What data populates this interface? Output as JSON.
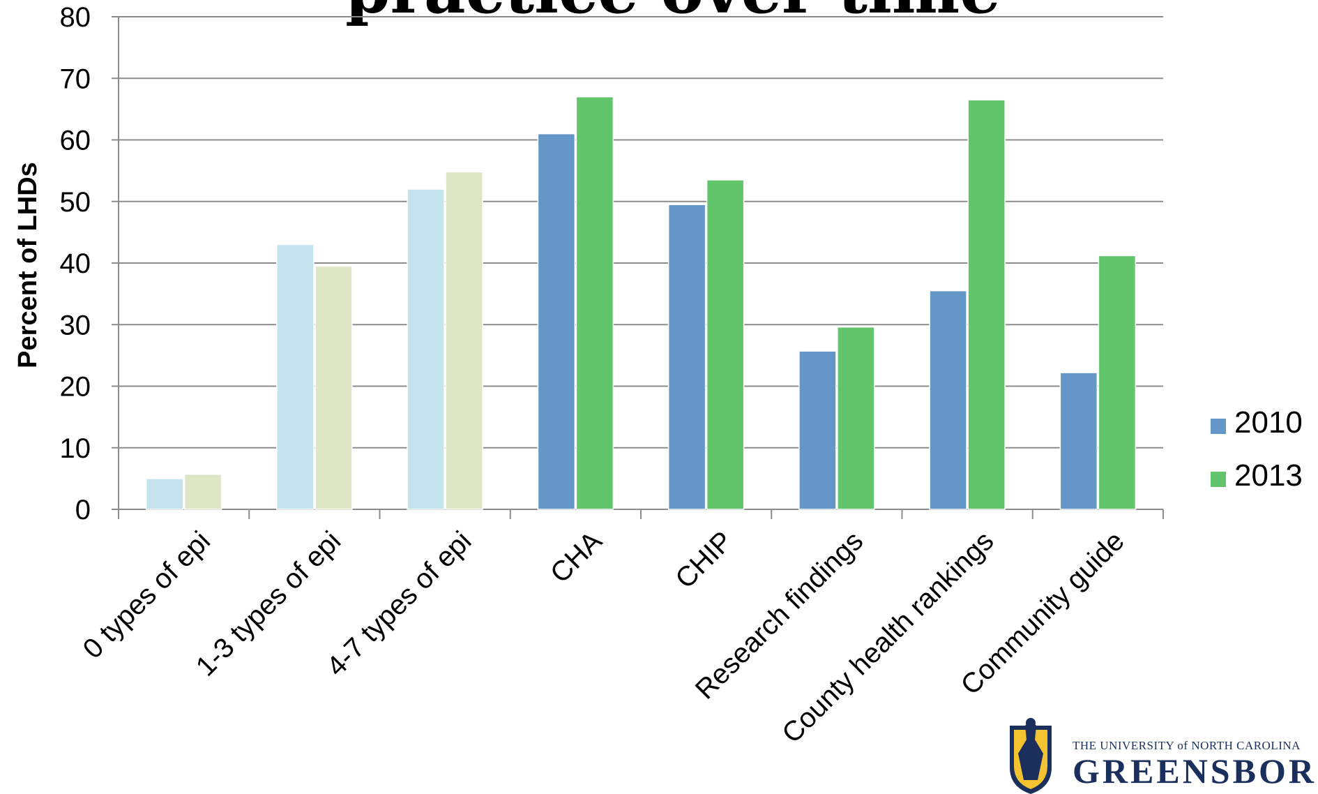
{
  "slide": {
    "title": "practice over time"
  },
  "chart_data": {
    "type": "bar",
    "ylabel": "Percent of LHDs",
    "xlabel": "",
    "ylim": [
      0,
      80
    ],
    "yticks": [
      0,
      10,
      20,
      30,
      40,
      50,
      60,
      70,
      80
    ],
    "grid": true,
    "legend_position": "right",
    "categories": [
      "0 types of epi",
      "1-3 types of epi",
      "4-7 types of epi",
      "CHA",
      "CHIP",
      "Research findings",
      "County health rankings",
      "Community guide"
    ],
    "series": [
      {
        "name": "2010",
        "color": "#6496c8",
        "light_color": "#c4e3ed",
        "values": [
          5,
          43,
          52,
          61,
          49.5,
          25.7,
          35.5,
          22.2
        ]
      },
      {
        "name": "2013",
        "color": "#62c46b",
        "light_color": "#dee6c6",
        "values": [
          5.7,
          39.5,
          54.8,
          67,
          53.5,
          29.6,
          66.5,
          41.2
        ]
      }
    ],
    "light_categories": [
      0,
      1,
      2
    ]
  },
  "logo": {
    "line1": "THE UNIVERSITY of NORTH CAROLINA",
    "line2": "GREENSBORO"
  }
}
